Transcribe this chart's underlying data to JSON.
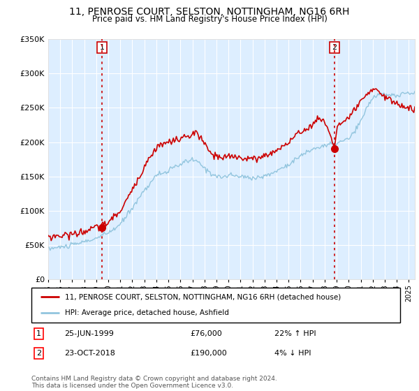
{
  "title": "11, PENROSE COURT, SELSTON, NOTTINGHAM, NG16 6RH",
  "subtitle": "Price paid vs. HM Land Registry's House Price Index (HPI)",
  "legend_line1": "11, PENROSE COURT, SELSTON, NOTTINGHAM, NG16 6RH (detached house)",
  "legend_line2": "HPI: Average price, detached house, Ashfield",
  "annotation1_date": "25-JUN-1999",
  "annotation1_price": "£76,000",
  "annotation1_hpi": "22% ↑ HPI",
  "annotation2_date": "23-OCT-2018",
  "annotation2_price": "£190,000",
  "annotation2_hpi": "4% ↓ HPI",
  "footer": "Contains HM Land Registry data © Crown copyright and database right 2024.\nThis data is licensed under the Open Government Licence v3.0.",
  "hpi_color": "#92c5de",
  "price_color": "#cc0000",
  "bg_color": "#ddeeff",
  "ylim": [
    0,
    350000
  ],
  "yticks": [
    0,
    50000,
    100000,
    150000,
    200000,
    250000,
    300000,
    350000
  ],
  "sale1_x": 1999.49,
  "sale1_y": 76000,
  "sale2_x": 2018.81,
  "sale2_y": 190000,
  "xlim_start": 1995.0,
  "xlim_end": 2025.5
}
